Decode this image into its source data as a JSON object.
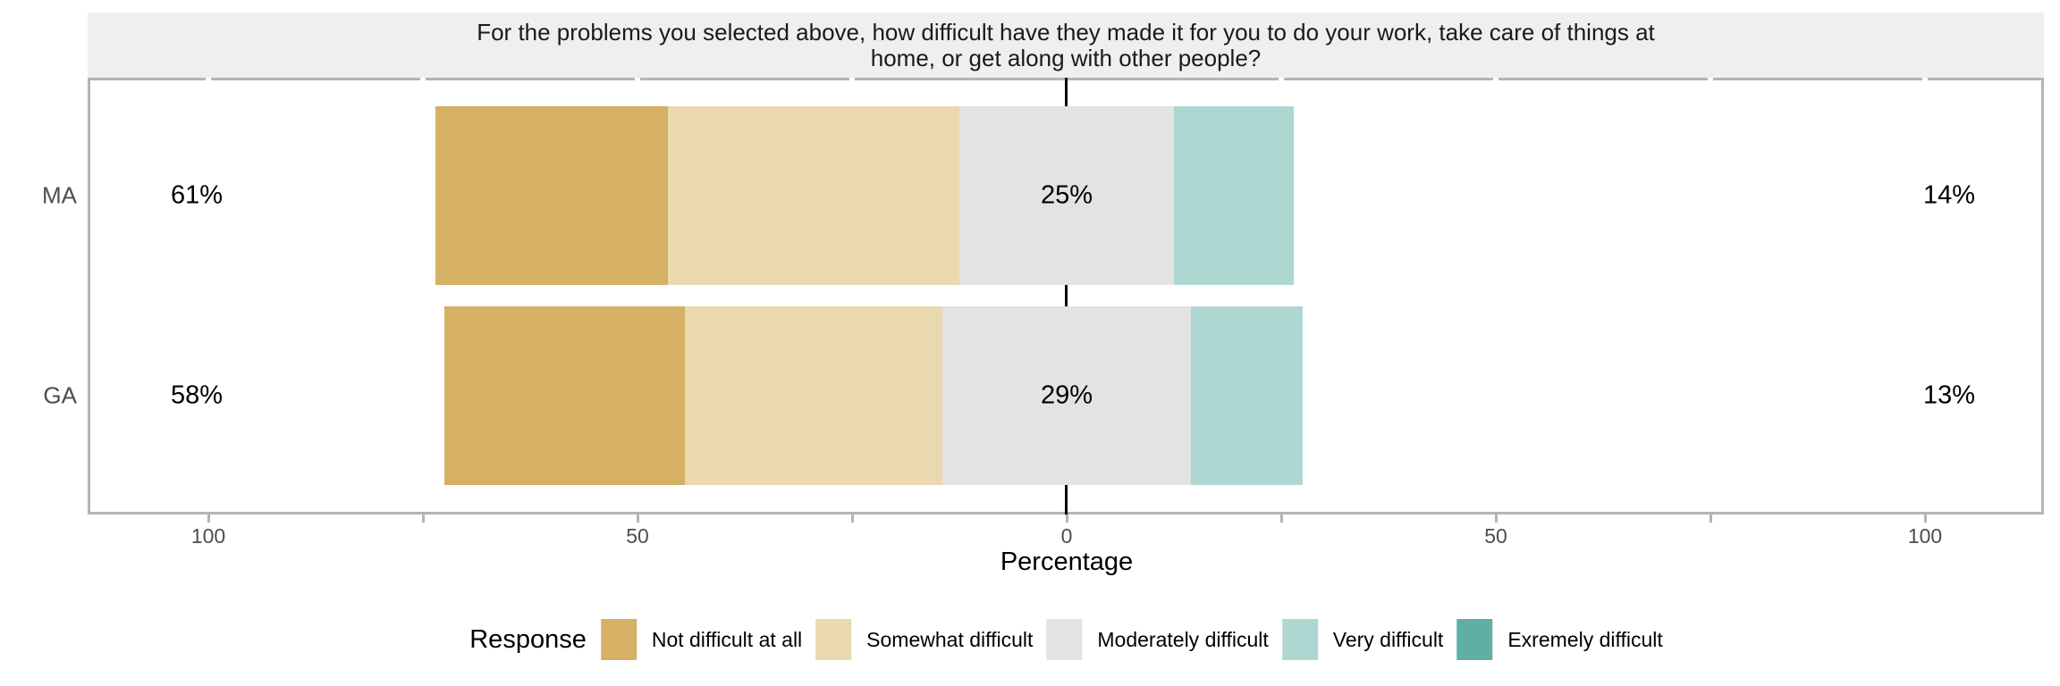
{
  "title": {
    "full": "For the problems you selected above, how difficult have they made it for you to do your work, take care of things at home, or get along with other people?",
    "line1": "For the problems you selected above, how difficult have they made it for you to do your work, take care of things at",
    "line2": "home, or get along with other people?"
  },
  "axis": {
    "title": "Percentage",
    "tick_labels": [
      "100",
      "50",
      "0",
      "50",
      "100"
    ]
  },
  "legend": {
    "title": "Response",
    "items": [
      {
        "label": "Not difficult at all",
        "color": "#D5B065"
      },
      {
        "label": "Somewhat difficult",
        "color": "#EAD9AE"
      },
      {
        "label": "Moderately difficult",
        "color": "#E3E3E3"
      },
      {
        "label": "Very difficult",
        "color": "#AFD7D1"
      },
      {
        "label": "Exremely difficult",
        "color": "#5FAFA5"
      }
    ]
  },
  "rows": [
    {
      "group": "MA",
      "left_total": "61%",
      "center_label": "25%",
      "right_total": "14%"
    },
    {
      "group": "GA",
      "left_total": "58%",
      "center_label": "29%",
      "right_total": "13%"
    }
  ],
  "theme": {
    "strip_bg": "#EFEFEF",
    "panel_border": "#B4B4B4",
    "zero_line": "#000000",
    "tick_color": "#B4B4B4",
    "axis_text_color": "#4D4D4D"
  },
  "chart_data": {
    "type": "bar",
    "subtype": "diverging-stacked-likert",
    "orientation": "horizontal",
    "categories": [
      "MA",
      "GA"
    ],
    "series": [
      {
        "name": "Not difficult at all",
        "values": [
          27,
          28
        ],
        "color": "#D5B065"
      },
      {
        "name": "Somewhat difficult",
        "values": [
          34,
          30
        ],
        "color": "#EAD9AE"
      },
      {
        "name": "Moderately difficult",
        "values": [
          25,
          29
        ],
        "color": "#E3E3E3"
      },
      {
        "name": "Very difficult",
        "values": [
          14,
          13
        ],
        "color": "#AFD7D1"
      },
      {
        "name": "Exremely difficult",
        "values": [
          0,
          0
        ],
        "color": "#5FAFA5"
      }
    ],
    "totals": {
      "negative_side": [
        "61%",
        "58%"
      ],
      "neutral": [
        "25%",
        "29%"
      ],
      "positive_side": [
        "14%",
        "13%"
      ]
    },
    "centered_on": "Moderately difficult",
    "title": "For the problems you selected above, how difficult have they made it for you to do your work, take care of things at home, or get along with other people?",
    "xlabel": "Percentage",
    "ylabel": "",
    "xlim": [
      -114,
      114
    ],
    "x_major_breaks": [
      -100,
      -50,
      0,
      50,
      100
    ],
    "x_minor_breaks": [
      -75,
      -25,
      25,
      75
    ],
    "x_tick_labels": [
      "100",
      "50",
      "0",
      "50",
      "100"
    ],
    "grid": false,
    "legend_position": "bottom"
  }
}
